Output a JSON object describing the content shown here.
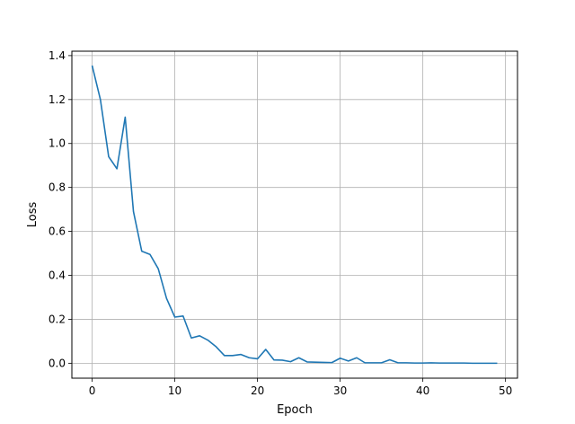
{
  "chart_data": {
    "type": "line",
    "title": "",
    "xlabel": "Epoch",
    "ylabel": "Loss",
    "xlim": [
      -2.45,
      51.45
    ],
    "ylim": [
      -0.068,
      1.42
    ],
    "grid": true,
    "x_ticks": [
      0,
      10,
      20,
      30,
      40,
      50
    ],
    "x_tick_labels": [
      "0",
      "10",
      "20",
      "30",
      "40",
      "50"
    ],
    "y_ticks": [
      0.0,
      0.2,
      0.4,
      0.6,
      0.8,
      1.0,
      1.2,
      1.4
    ],
    "y_tick_labels": [
      "0.0",
      "0.2",
      "0.4",
      "0.6",
      "0.8",
      "1.0",
      "1.2",
      "1.4"
    ],
    "series": [
      {
        "color": "#1f77b4",
        "x": [
          0,
          1,
          2,
          3,
          4,
          5,
          6,
          7,
          8,
          9,
          10,
          11,
          12,
          13,
          14,
          15,
          16,
          17,
          18,
          19,
          20,
          21,
          22,
          23,
          24,
          25,
          26,
          27,
          28,
          29,
          30,
          31,
          32,
          33,
          34,
          35,
          36,
          37,
          38,
          39,
          40,
          41,
          42,
          43,
          44,
          45,
          46,
          47,
          48,
          49
        ],
        "y": [
          1.355,
          1.2,
          0.94,
          0.885,
          1.12,
          0.69,
          0.51,
          0.495,
          0.43,
          0.295,
          0.21,
          0.215,
          0.115,
          0.125,
          0.105,
          0.075,
          0.035,
          0.035,
          0.04,
          0.025,
          0.02,
          0.063,
          0.015,
          0.014,
          0.007,
          0.025,
          0.006,
          0.005,
          0.004,
          0.003,
          0.023,
          0.01,
          0.025,
          0.002,
          0.002,
          0.002,
          0.016,
          0.002,
          0.002,
          0.001,
          0.001,
          0.002,
          0.001,
          0.001,
          0.001,
          0.001,
          0.0,
          0.0,
          0.0,
          0.0
        ]
      }
    ]
  }
}
